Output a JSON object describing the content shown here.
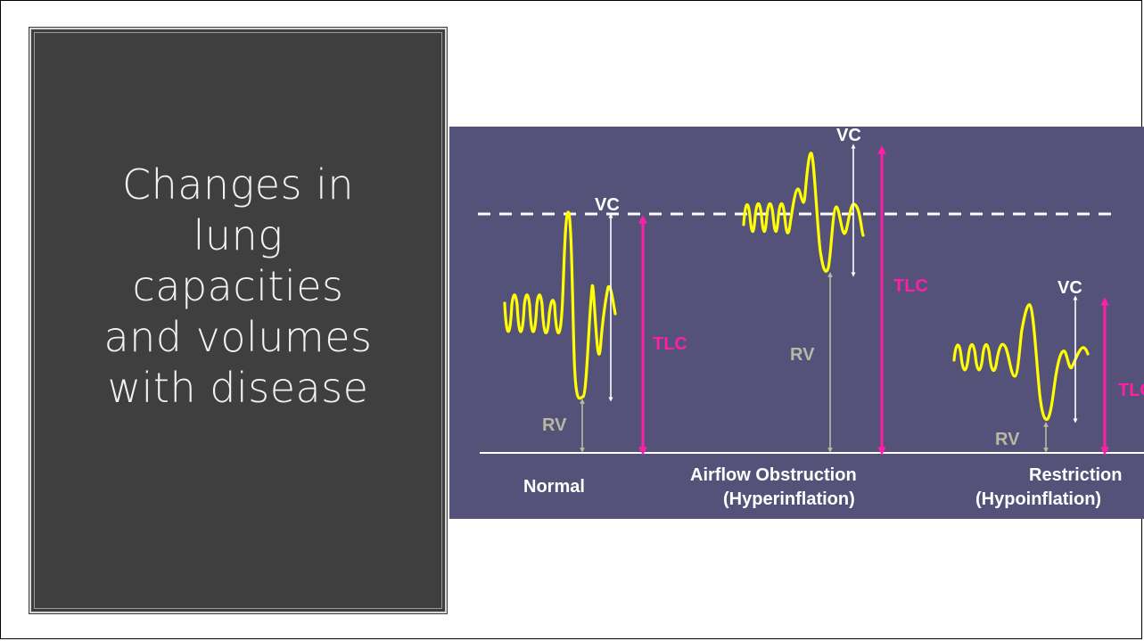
{
  "slide": {
    "title_lines": [
      "Changes in",
      "lung",
      "capacities",
      "and volumes",
      "with disease"
    ]
  },
  "diagram": {
    "colors": {
      "background": "#55527a",
      "waveform": "#ffff00",
      "tlc": "#ff1ea8",
      "vc": "#ffffff",
      "rv": "#b8b8a4",
      "reference_line": "#ffffff"
    },
    "labels": {
      "vc": "VC",
      "tlc": "TLC",
      "rv": "RV"
    },
    "panels": {
      "normal": {
        "name": "Normal"
      },
      "obstruction": {
        "name_line1": "Airflow Obstruction",
        "name_line2": "(Hyperinflation)"
      },
      "restriction": {
        "name_line1": "Restriction",
        "name_line2": "(Hypoinflation)",
        "tlc_clipped": "TLC"
      }
    }
  }
}
